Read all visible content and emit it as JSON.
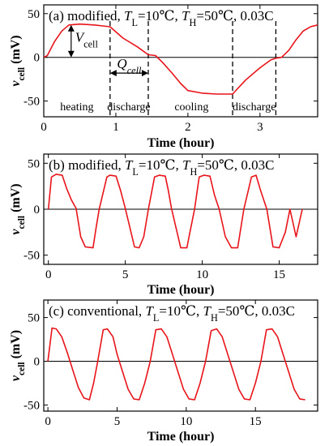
{
  "colors": {
    "curve": "#e8141a",
    "axis": "#000000"
  },
  "chart_data": [
    {
      "type": "line",
      "panel": "(a)",
      "title_prefix": "(a) modified, ",
      "title_params": "T_L=10℃, T_H=50℃, 0.03C",
      "title_parts": [
        {
          "t": "(a) modified, ",
          "i": false,
          "s": false
        },
        {
          "t": "T",
          "i": true,
          "s": false
        },
        {
          "t": "L",
          "i": false,
          "s": true
        },
        {
          "t": "=10℃, ",
          "i": false,
          "s": false
        },
        {
          "t": "T",
          "i": true,
          "s": false
        },
        {
          "t": "H",
          "i": false,
          "s": true
        },
        {
          "t": "=50℃, 0.03C",
          "i": false,
          "s": false
        }
      ],
      "xlabel": "Time (hour)",
      "ylabel_main": "v",
      "ylabel_sub": "cell",
      "ylabel_unit": " (mV)",
      "xlim": [
        0,
        3.8
      ],
      "ylim": [
        -68,
        60
      ],
      "xticks": [
        0,
        1,
        2,
        3
      ],
      "yticks": [
        50,
        0,
        -50
      ],
      "phase_lines_x": [
        0.92,
        1.45,
        2.62,
        3.22
      ],
      "phases": [
        {
          "label": "heating",
          "x": 0.46
        },
        {
          "label": "discharge",
          "x": 1.18
        },
        {
          "label": "cooling",
          "x": 2.05
        },
        {
          "label": "discharge",
          "x": 2.92
        }
      ],
      "annotations": {
        "v_label": "V",
        "v_sub": "cell",
        "q_label": "Q",
        "q_sub": "cell",
        "v_arrow_x": 0.38,
        "v_arrow_y": [
          0,
          37
        ],
        "q_arrow_y": -18,
        "q_arrow_x": [
          0.92,
          1.45
        ]
      },
      "series": [
        {
          "x": [
            0,
            0.05,
            0.15,
            0.25,
            0.35,
            0.5,
            0.7,
            0.92,
            1.1,
            1.3,
            1.45,
            1.55,
            1.65,
            1.78,
            1.9,
            2.0,
            2.2,
            2.4,
            2.62,
            2.8,
            3.0,
            3.15,
            3.22,
            3.3,
            3.4,
            3.5,
            3.6,
            3.7,
            3.8
          ],
          "y": [
            0,
            2,
            18,
            30,
            37,
            38,
            37,
            35,
            22,
            12,
            3,
            2,
            -6,
            -18,
            -30,
            -38,
            -41,
            -42,
            -42,
            -26,
            -12,
            -3,
            -1,
            0,
            8,
            20,
            30,
            35,
            37
          ]
        }
      ]
    },
    {
      "type": "line",
      "panel": "(b)",
      "title_parts": [
        {
          "t": "(b) modified, ",
          "i": false,
          "s": false
        },
        {
          "t": "T",
          "i": true,
          "s": false
        },
        {
          "t": "L",
          "i": false,
          "s": true
        },
        {
          "t": "=10℃, ",
          "i": false,
          "s": false
        },
        {
          "t": "T",
          "i": true,
          "s": false
        },
        {
          "t": "H",
          "i": false,
          "s": true
        },
        {
          "t": "=50℃, 0.03C",
          "i": false,
          "s": false
        }
      ],
      "xlabel": "Time (hour)",
      "ylabel_main": "v",
      "ylabel_sub": "cell",
      "ylabel_unit": " (mV)",
      "xlim": [
        -0.3,
        17.5
      ],
      "ylim": [
        -60,
        60
      ],
      "xticks": [
        0,
        5,
        10,
        15
      ],
      "yticks": [
        50,
        0,
        -50
      ],
      "series": [
        {
          "x": [
            0,
            0.2,
            0.5,
            0.9,
            1.2,
            1.5,
            1.8,
            2.1,
            2.4,
            2.9,
            3.1,
            3.3,
            3.8,
            4.0,
            4.4,
            4.7,
            5.0,
            5.3,
            5.6,
            5.9,
            6.2,
            6.5,
            6.9,
            7.2,
            7.6,
            7.8,
            8.0,
            8.6,
            9.0,
            9.2,
            9.5,
            9.8,
            10.1,
            10.5,
            10.8,
            11.1,
            11.5,
            11.9,
            12.3,
            12.7,
            13.2,
            13.5,
            13.8,
            14.2,
            14.6,
            15.0,
            15.4,
            15.7,
            16.1,
            16.5
          ],
          "y": [
            0,
            35,
            38,
            37,
            22,
            10,
            1,
            -30,
            -41,
            -42,
            -20,
            0,
            35,
            37,
            36,
            20,
            1,
            -20,
            -41,
            -42,
            -30,
            0,
            35,
            37,
            36,
            20,
            1,
            -42,
            -42,
            -25,
            0,
            35,
            37,
            36,
            15,
            0,
            -30,
            -42,
            -42,
            0,
            35,
            37,
            20,
            0,
            -41,
            -42,
            -25,
            0,
            -30,
            0
          ]
        }
      ]
    },
    {
      "type": "line",
      "panel": "(c)",
      "title_parts": [
        {
          "t": "(c) conventional, ",
          "i": false,
          "s": false
        },
        {
          "t": "T",
          "i": true,
          "s": false
        },
        {
          "t": "L",
          "i": false,
          "s": true
        },
        {
          "t": "=10℃, ",
          "i": false,
          "s": false
        },
        {
          "t": "T",
          "i": true,
          "s": false
        },
        {
          "t": "H",
          "i": false,
          "s": true
        },
        {
          "t": "=50℃, 0.03C",
          "i": false,
          "s": false
        }
      ],
      "xlabel": "Time (hour)",
      "ylabel_main": "v",
      "ylabel_sub": "cell",
      "ylabel_unit": " (mV)",
      "xlim": [
        -0.3,
        19.5
      ],
      "ylim": [
        -57,
        70
      ],
      "xticks": [
        0,
        5,
        10,
        15
      ],
      "yticks": [
        50,
        0,
        -50
      ],
      "series": [
        {
          "x": [
            0,
            0.3,
            0.6,
            1.0,
            1.4,
            1.8,
            2.2,
            2.6,
            3.0,
            3.3,
            3.6,
            4.0,
            4.3,
            4.7,
            5.0,
            5.4,
            5.8,
            6.2,
            6.6,
            7.0,
            7.4,
            7.8,
            8.2,
            8.6,
            9.0,
            9.4,
            9.8,
            10.2,
            10.6,
            11.0,
            11.4,
            11.8,
            12.2,
            12.6,
            13.0,
            13.4,
            13.8,
            14.2,
            14.6,
            15.0,
            15.4,
            15.8,
            16.2,
            16.6,
            17.0,
            17.4,
            17.8,
            18.2,
            18.6
          ],
          "y": [
            0,
            38,
            37,
            28,
            10,
            -10,
            -30,
            -42,
            -44,
            -25,
            0,
            36,
            37,
            28,
            8,
            -12,
            -32,
            -43,
            -44,
            -25,
            0,
            36,
            37,
            28,
            8,
            -12,
            -32,
            -43,
            -44,
            -25,
            0,
            35,
            37,
            28,
            8,
            -12,
            -32,
            -43,
            -44,
            -25,
            0,
            36,
            37,
            28,
            8,
            -12,
            -32,
            -43,
            -44
          ]
        }
      ]
    }
  ]
}
